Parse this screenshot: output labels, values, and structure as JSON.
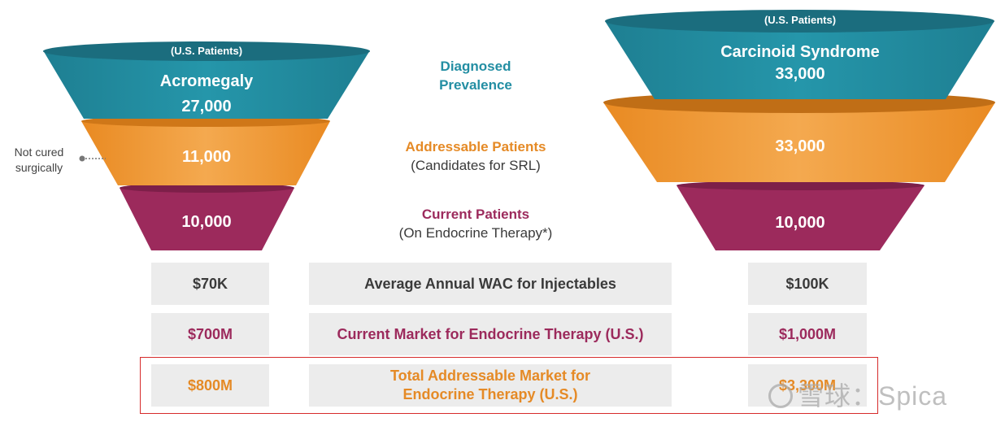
{
  "left_funnel": {
    "top_note": "(U.S. Patients)",
    "condition": "Acromegaly",
    "diagnosed": "27,000",
    "addressable": "11,000",
    "current": "10,000",
    "side_note": "Not cured surgically"
  },
  "right_funnel": {
    "top_note": "(U.S. Patients)",
    "condition": "Carcinoid Syndrome",
    "diagnosed": "33,000",
    "addressable": "33,000",
    "current": "10,000"
  },
  "stages": {
    "diagnosed": "Diagnosed Prevalence",
    "addressable": "Addressable Patients",
    "addressable_sub": "(Candidates for SRL)",
    "current": "Current Patients",
    "current_sub": "(On Endocrine Therapy*)"
  },
  "rows": [
    {
      "left": "$70K",
      "label": "Average Annual WAC for Injectables",
      "right": "$100K"
    },
    {
      "left": "$700M",
      "label": "Current Market for Endocrine Therapy (U.S.)",
      "right": "$1,000M"
    },
    {
      "left": "$800M",
      "label": "Total Addressable Market for Endocrine Therapy (U.S.)",
      "right": "$3,300M"
    }
  ],
  "watermark": "雪球：Spica",
  "colors": {
    "teal": "#238ea3",
    "orange": "#e58a26",
    "plum": "#9c2a5c",
    "box": "#ececec",
    "highlight": "#d62b2b"
  }
}
